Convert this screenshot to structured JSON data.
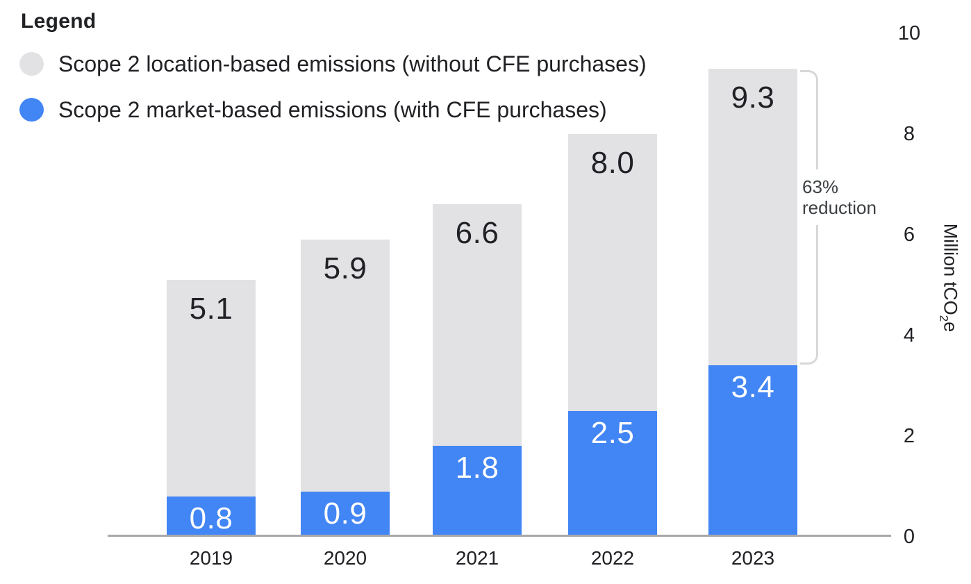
{
  "legend": {
    "title": "Legend",
    "items": [
      {
        "label": "Scope 2 location-based emissions (without CFE purchases)",
        "color": "#e2e2e5"
      },
      {
        "label": "Scope 2 market-based emissions (with CFE purchases)",
        "color": "#4285f4"
      }
    ]
  },
  "colors": {
    "location_gray": "#e2e2e5",
    "market_blue": "#4285f4",
    "axis_line": "#a8a8ac",
    "bracket_gray": "#d7d7da",
    "text_dark": "#202124",
    "annotation_text": "#3c4043",
    "bar_label_light": "#ffffff"
  },
  "chart_data": {
    "type": "bar",
    "subtype": "overlaid-columns",
    "categories": [
      "2019",
      "2020",
      "2021",
      "2022",
      "2023"
    ],
    "series": [
      {
        "name": "Scope 2 location-based emissions (without CFE purchases)",
        "color": "#e2e2e5",
        "values": [
          5.1,
          5.9,
          6.6,
          8.0,
          9.3
        ],
        "labels": [
          "5.1",
          "5.9",
          "6.6",
          "8.0",
          "9.3"
        ]
      },
      {
        "name": "Scope 2 market-based emissions (with CFE purchases)",
        "color": "#4285f4",
        "values": [
          0.8,
          0.9,
          1.8,
          2.5,
          3.4
        ],
        "labels": [
          "0.8",
          "0.9",
          "1.8",
          "2.5",
          "3.4"
        ]
      }
    ],
    "xlabel": "",
    "ylabel": {
      "pre": "Million tCO",
      "sub": "2",
      "post": "e"
    },
    "yticks": [
      "0",
      "2",
      "4",
      "6",
      "8",
      "10"
    ],
    "ylim": [
      0,
      10
    ],
    "grid": false,
    "legend_position": "top-left",
    "annotation": {
      "line1": "63%",
      "line2": "reduction",
      "applies_to_category": "2023"
    }
  }
}
